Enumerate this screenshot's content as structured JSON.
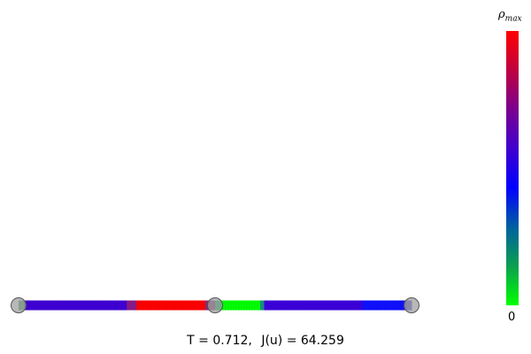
{
  "network": {
    "edges": [
      {
        "name": "edge-left",
        "segments": [
          {
            "from": 0.0,
            "to": 0.03,
            "color": "#3a9a5a"
          },
          {
            "from": 0.03,
            "to": 0.55,
            "color": "#3f00d6"
          },
          {
            "from": 0.55,
            "to": 0.6,
            "color": "#8a1a88"
          },
          {
            "from": 0.6,
            "to": 0.95,
            "color": "#ff0000"
          },
          {
            "from": 0.95,
            "to": 1.0,
            "color": "#8a2a70"
          }
        ]
      },
      {
        "name": "edge-right",
        "segments": [
          {
            "from": 0.0,
            "to": 0.03,
            "color": "#00c060"
          },
          {
            "from": 0.03,
            "to": 0.23,
            "color": "#00ff00"
          },
          {
            "from": 0.23,
            "to": 0.25,
            "color": "#1a9080"
          },
          {
            "from": 0.25,
            "to": 0.75,
            "color": "#3c00dc"
          },
          {
            "from": 0.75,
            "to": 0.97,
            "color": "#1010ff"
          },
          {
            "from": 0.97,
            "to": 1.0,
            "color": "#4040d0"
          }
        ]
      }
    ],
    "nodes": [
      "n1",
      "n2",
      "n3"
    ],
    "node_color": "#a0a0a0"
  },
  "colorbar": {
    "max_label": "ρ",
    "max_sub": "max",
    "min_label": "0",
    "stops": [
      "#00ff00",
      "#0aa050",
      "#0060a0",
      "#0000ff",
      "#4000d0",
      "#7a0090",
      "#c00040",
      "#ff0000"
    ]
  },
  "caption": {
    "t_text": "T = 0.712,",
    "j_text": "J(u) = 64.259"
  }
}
